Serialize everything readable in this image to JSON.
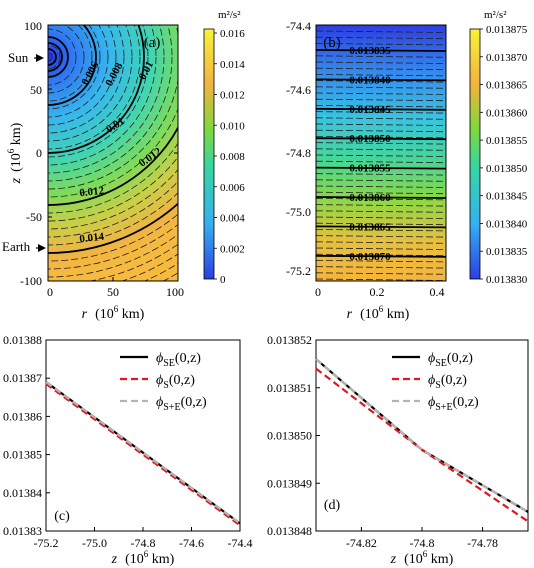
{
  "chart_data": [
    {
      "panel": "(a)",
      "type": "heatmap",
      "description_units": "m²/s²",
      "xlabel_prefix": "r",
      "xlabel_units": "(10",
      "xlabel_exp": "6",
      "xlabel_suffix": " km)",
      "ylabel_prefix": "z",
      "ylabel_units": "(10",
      "ylabel_exp": "6",
      "ylabel_suffix": " km)",
      "xlim": [
        0,
        100
      ],
      "ylim": [
        -100,
        100
      ],
      "xticks": [
        "0",
        "50",
        "100"
      ],
      "yticks": [
        "100",
        "50",
        "0",
        "-50",
        "-100"
      ],
      "contour_labels": [
        "0.006",
        "0.008",
        "0.01",
        "0.01",
        "0.012",
        "0.012",
        "0.014"
      ],
      "markers": [
        {
          "label": "Sun",
          "z": 75
        },
        {
          "label": "Earth",
          "z": -75
        }
      ],
      "colorbar": {
        "units": "m²/s²",
        "range": [
          0,
          0.0165
        ],
        "ticks": [
          "0.016",
          "0.014",
          "0.012",
          "0.010",
          "0.008",
          "0.006",
          "0.004",
          "0.002",
          "0"
        ]
      }
    },
    {
      "panel": "(b)",
      "type": "heatmap",
      "xlabel_prefix": "r",
      "xlabel_units": "(10",
      "xlabel_exp": "6",
      "xlabel_suffix": " km)",
      "xlim": [
        0,
        0.42
      ],
      "ylim": [
        -75.22,
        -74.4
      ],
      "xticks": [
        "0",
        "0.2",
        "0.4"
      ],
      "yticks": [
        "-74.4",
        "-74.6",
        "-74.8",
        "-75.0",
        "-75.2"
      ],
      "contour_labels": [
        "0.013835",
        "0.013840",
        "0.013845",
        "0.013850",
        "0.013855",
        "0.013860",
        "0.013865",
        "0.013870"
      ],
      "colorbar": {
        "units": "m²/s²",
        "range": [
          0.01383,
          0.013875
        ],
        "ticks": [
          "0.013875",
          "0.013870",
          "0.013865",
          "0.013860",
          "0.013855",
          "0.013850",
          "0.013845",
          "0.013840",
          "0.013835",
          "0.013830"
        ]
      }
    },
    {
      "panel": "(c)",
      "type": "line",
      "xlabel_prefix": "z",
      "xlabel_units": "(10",
      "xlabel_exp": "6",
      "xlabel_suffix": " km)",
      "xlim": [
        -75.2,
        -74.4
      ],
      "ylim": [
        0.01383,
        0.01388
      ],
      "xticks": [
        "-75.2",
        "-75.0",
        "-74.8",
        "-74.6",
        "-74.4"
      ],
      "yticks": [
        "0.01388",
        "0.01387",
        "0.01386",
        "0.01385",
        "0.01384",
        "0.01383"
      ],
      "series": [
        {
          "name_main": "ϕ",
          "name_sub": "SE",
          "name_arg": "(0,z)",
          "color": "#000000",
          "dash": "solid",
          "x": [
            -75.2,
            -74.4
          ],
          "y": [
            0.013869,
            0.013832
          ]
        },
        {
          "name_main": "ϕ",
          "name_sub": "S",
          "name_arg": "(0,z)",
          "color": "#e8141c",
          "dash": "dashed",
          "x": [
            -75.2,
            -74.4
          ],
          "y": [
            0.0138685,
            0.0138315
          ]
        },
        {
          "name_main": "ϕ",
          "name_sub": "S+E",
          "name_arg": "(0,z)",
          "color": "#b4b4b4",
          "dash": "dashed",
          "x": [
            -75.2,
            -74.4
          ],
          "y": [
            0.013869,
            0.013832
          ]
        }
      ]
    },
    {
      "panel": "(d)",
      "type": "line",
      "xlabel_prefix": "z",
      "xlabel_units": "(10",
      "xlabel_exp": "6",
      "xlabel_suffix": " km)",
      "xlim": [
        -74.835,
        -74.765
      ],
      "ylim": [
        0.013848,
        0.013852
      ],
      "xticks": [
        "-74.82",
        "-74.8",
        "-74.78"
      ],
      "yticks": [
        "0.013852",
        "0.013851",
        "0.013850",
        "0.013849",
        "0.013848"
      ],
      "series": [
        {
          "name_main": "ϕ",
          "name_sub": "SE",
          "name_arg": "(0,z)",
          "color": "#000000",
          "dash": "solid",
          "x": [
            -74.835,
            -74.8,
            -74.765
          ],
          "y": [
            0.0138516,
            0.0138497,
            0.0138484
          ]
        },
        {
          "name_main": "ϕ",
          "name_sub": "S",
          "name_arg": "(0,z)",
          "color": "#e8141c",
          "dash": "dashed",
          "x": [
            -74.835,
            -74.8,
            -74.765
          ],
          "y": [
            0.0138514,
            0.0138497,
            0.0138482
          ]
        },
        {
          "name_main": "ϕ",
          "name_sub": "S+E",
          "name_arg": "(0,z)",
          "color": "#b4b4b4",
          "dash": "dashed",
          "x": [
            -74.835,
            -74.8,
            -74.765
          ],
          "y": [
            0.0138516,
            0.0138497,
            0.0138484
          ]
        }
      ]
    }
  ]
}
